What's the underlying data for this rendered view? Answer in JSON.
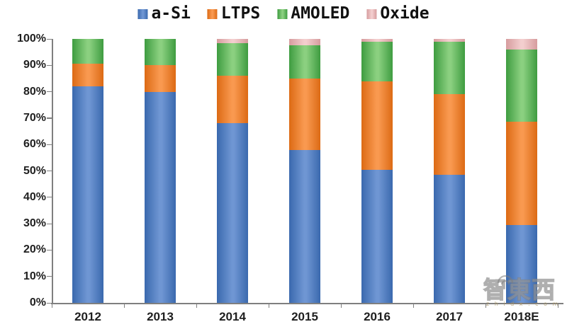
{
  "chart_data": {
    "type": "bar",
    "stacked": true,
    "percent": true,
    "title": "",
    "xlabel": "",
    "ylabel": "",
    "categories": [
      "2012",
      "2013",
      "2014",
      "2015",
      "2016",
      "2017",
      "2018E"
    ],
    "series": [
      {
        "name": "a-Si",
        "values": [
          82,
          80,
          68,
          58,
          50.5,
          48.5,
          29.5
        ],
        "color": "#4A79C1",
        "color_edge": "#3A69AE",
        "color_center": "#6F96D3"
      },
      {
        "name": "LTPS",
        "values": [
          8.5,
          10,
          18,
          27,
          33.5,
          30.5,
          39
        ],
        "color": "#EE7D24",
        "color_edge": "#DC6A14",
        "color_center": "#F99950"
      },
      {
        "name": "AMOLED",
        "values": [
          9.5,
          10,
          12.5,
          12.5,
          15,
          20,
          27.5
        ],
        "color": "#57B257",
        "color_edge": "#3E9C40",
        "color_center": "#8BD080"
      },
      {
        "name": "Oxide",
        "values": [
          0,
          0,
          1.5,
          2.5,
          1,
          1,
          4
        ],
        "color": "#E7B5B6",
        "color_edge": "#D69C9E",
        "color_center": "#F3CECE"
      }
    ],
    "ylim": [
      0,
      100
    ],
    "yticks": [
      "0%",
      "10%",
      "20%",
      "30%",
      "40%",
      "50%",
      "60%",
      "70%",
      "80%",
      "90%",
      "100%"
    ],
    "grid": false,
    "legend_position": "top",
    "axis_color": "#7f7f7f",
    "label_color": "#1f1f1f"
  },
  "watermark": {
    "text": "智東西",
    "subtext": "z h i d x . c o m"
  }
}
